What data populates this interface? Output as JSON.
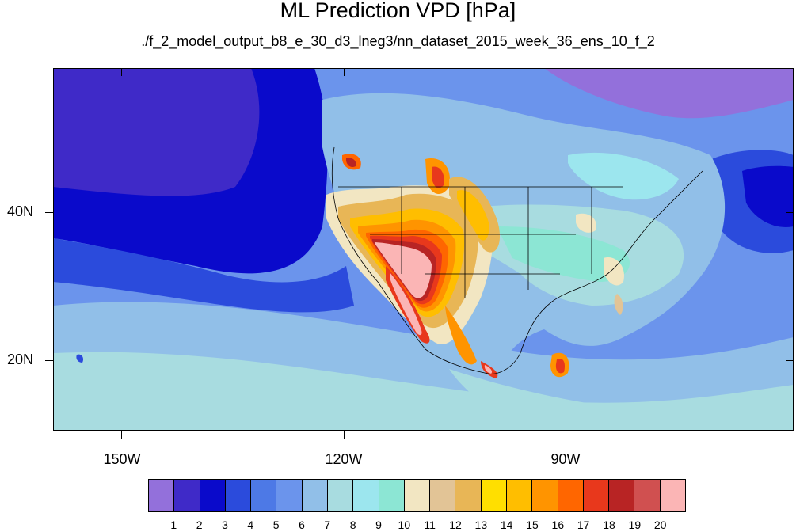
{
  "title": "ML Prediction VPD [hPa]",
  "subtitle": "./f_2_model_output_b8_e_30_d3_lneg3/nn_dataset_2015_week_36_ens_10_f_2",
  "lon_labels": [
    "150W",
    "120W",
    "90W"
  ],
  "lat_labels": [
    "40N",
    "20N"
  ],
  "colorbar": {
    "colors": [
      "#9370db",
      "#3f2ac8",
      "#0a0acb",
      "#2b4bdc",
      "#4d79e6",
      "#6b94ec",
      "#91bfe8",
      "#a8dce0",
      "#9ce6ee",
      "#8ce6d4",
      "#f2e6c2",
      "#e2c496",
      "#e8b656",
      "#ffdf00",
      "#ffbe00",
      "#ff9400",
      "#ff6600",
      "#e8381c",
      "#b82424",
      "#d05050",
      "#fbb5b5"
    ],
    "labels": [
      "1",
      "2",
      "3",
      "4",
      "5",
      "6",
      "7",
      "8",
      "9",
      "10",
      "11",
      "12",
      "13",
      "14",
      "15",
      "16",
      "17",
      "18",
      "19",
      "20"
    ]
  }
}
